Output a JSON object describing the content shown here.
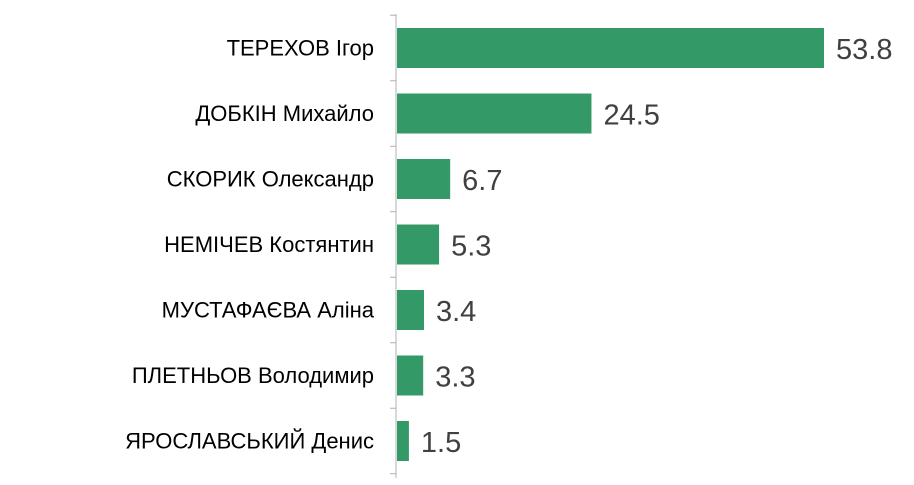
{
  "chart_data": {
    "type": "bar",
    "orientation": "horizontal",
    "categories": [
      "ТЕРЕХОВ Ігор",
      "ДОБКІН Михайло",
      "СКОРИК Олександр",
      "НЕМІЧЕВ Костянтин",
      "МУСТАФАЄВА Аліна",
      "ПЛЕТНЬОВ Володимир",
      "ЯРОСЛАВСЬКИЙ Денис"
    ],
    "values": [
      53.8,
      24.5,
      6.7,
      5.3,
      3.4,
      3.3,
      1.5
    ],
    "value_labels": [
      "53.8",
      "24.5",
      "6.7",
      "5.3",
      "3.4",
      "3.3",
      "1.5"
    ],
    "title": "",
    "xlabel": "",
    "ylabel": "",
    "xlim": [
      0,
      53.8
    ],
    "grid": false,
    "legend": "none",
    "bar_color": "#339966",
    "axis_color": "#b0b0b0",
    "value_label_color": "#404040",
    "category_label_color": "#000000"
  }
}
